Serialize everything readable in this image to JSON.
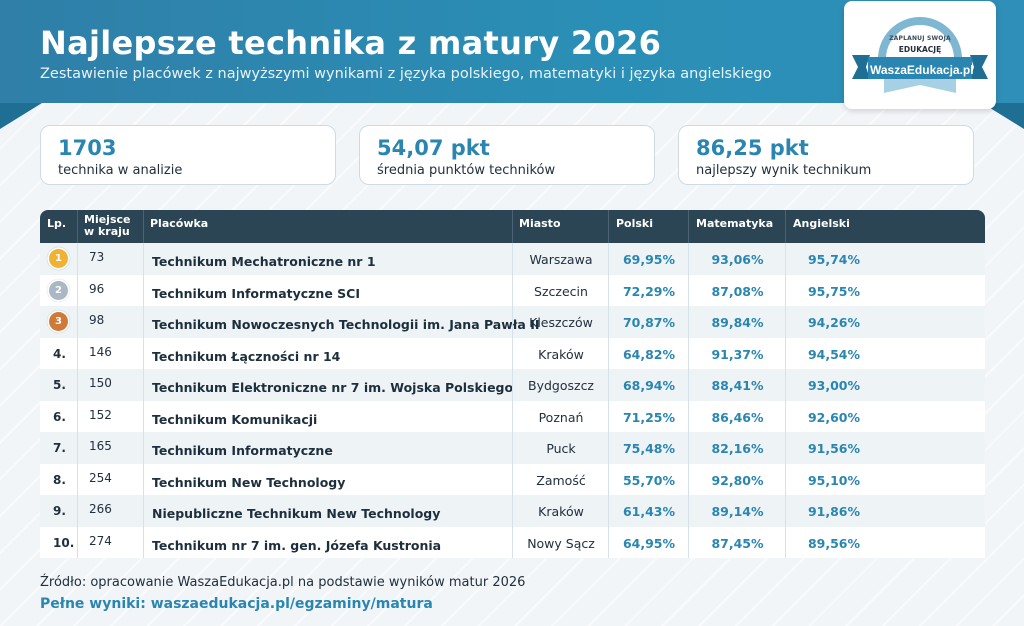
{
  "header": {
    "title": "Najlepsze technika z matury 2026",
    "subtitle": "Zestawienie placówek z najwyższymi wynikami z języka polskiego, matematyki i języka angielskiego"
  },
  "logo": {
    "line1": "ZAPLANUJ SWOJĄ",
    "line2": "EDUKACJĘ",
    "brand": "WaszaEdukacja.pl"
  },
  "stats": [
    {
      "value": "1703",
      "label": "technika w analizie"
    },
    {
      "value": "54,07 pkt",
      "label": "średnia punktów techników"
    },
    {
      "value": "86,25 pkt",
      "label": "najlepszy wynik technikum"
    }
  ],
  "table": {
    "headers": {
      "lp": "Lp.",
      "rank_line1": "Miejsce",
      "rank_line2": "w kraju",
      "school": "Placówka",
      "city": "Miasto",
      "polish": "Polski",
      "math": "Matematyka",
      "english": "Angielski"
    },
    "rows": [
      {
        "lp": "1",
        "rank": "73",
        "school": "Technikum Mechatroniczne nr 1",
        "city": "Warszawa",
        "polish": "69,95%",
        "math": "93,06%",
        "english": "95,74%"
      },
      {
        "lp": "2",
        "rank": "96",
        "school": "Technikum Informatyczne SCI",
        "city": "Szczecin",
        "polish": "72,29%",
        "math": "87,08%",
        "english": "95,75%"
      },
      {
        "lp": "3",
        "rank": "98",
        "school": "Technikum Nowoczesnych Technologii im. Jana Pawła II",
        "city": "Kleszczów",
        "polish": "70,87%",
        "math": "89,84%",
        "english": "94,26%"
      },
      {
        "lp": "4.",
        "rank": "146",
        "school": "Technikum Łączności nr 14",
        "city": "Kraków",
        "polish": "64,82%",
        "math": "91,37%",
        "english": "94,54%"
      },
      {
        "lp": "5.",
        "rank": "150",
        "school": "Technikum Elektroniczne nr 7 im. Wojska Polskiego",
        "city": "Bydgoszcz",
        "polish": "68,94%",
        "math": "88,41%",
        "english": "93,00%"
      },
      {
        "lp": "6.",
        "rank": "152",
        "school": "Technikum Komunikacji",
        "city": "Poznań",
        "polish": "71,25%",
        "math": "86,46%",
        "english": "92,60%"
      },
      {
        "lp": "7.",
        "rank": "165",
        "school": "Technikum Informatyczne",
        "city": "Puck",
        "polish": "75,48%",
        "math": "82,16%",
        "english": "91,56%"
      },
      {
        "lp": "8.",
        "rank": "254",
        "school": "Technikum New Technology",
        "city": "Zamość",
        "polish": "55,70%",
        "math": "92,80%",
        "english": "95,10%"
      },
      {
        "lp": "9.",
        "rank": "266",
        "school": "Niepubliczne Technikum New Technology",
        "city": "Kraków",
        "polish": "61,43%",
        "math": "89,14%",
        "english": "91,86%"
      },
      {
        "lp": "10.",
        "rank": "274",
        "school": "Technikum nr 7 im. gen. Józefa Kustronia",
        "city": "Nowy Sącz",
        "polish": "64,95%",
        "math": "87,45%",
        "english": "89,56%"
      }
    ]
  },
  "medal_colors": [
    "#f0b232",
    "#a9b8c4",
    "#d07a3a"
  ],
  "footer": {
    "source": "Źródło: opracowanie WaszaEdukacja.pl na podstawie wyników matur 2026",
    "full_results": "Pełne wyniki: waszaedukacja.pl/egzaminy/matura"
  }
}
